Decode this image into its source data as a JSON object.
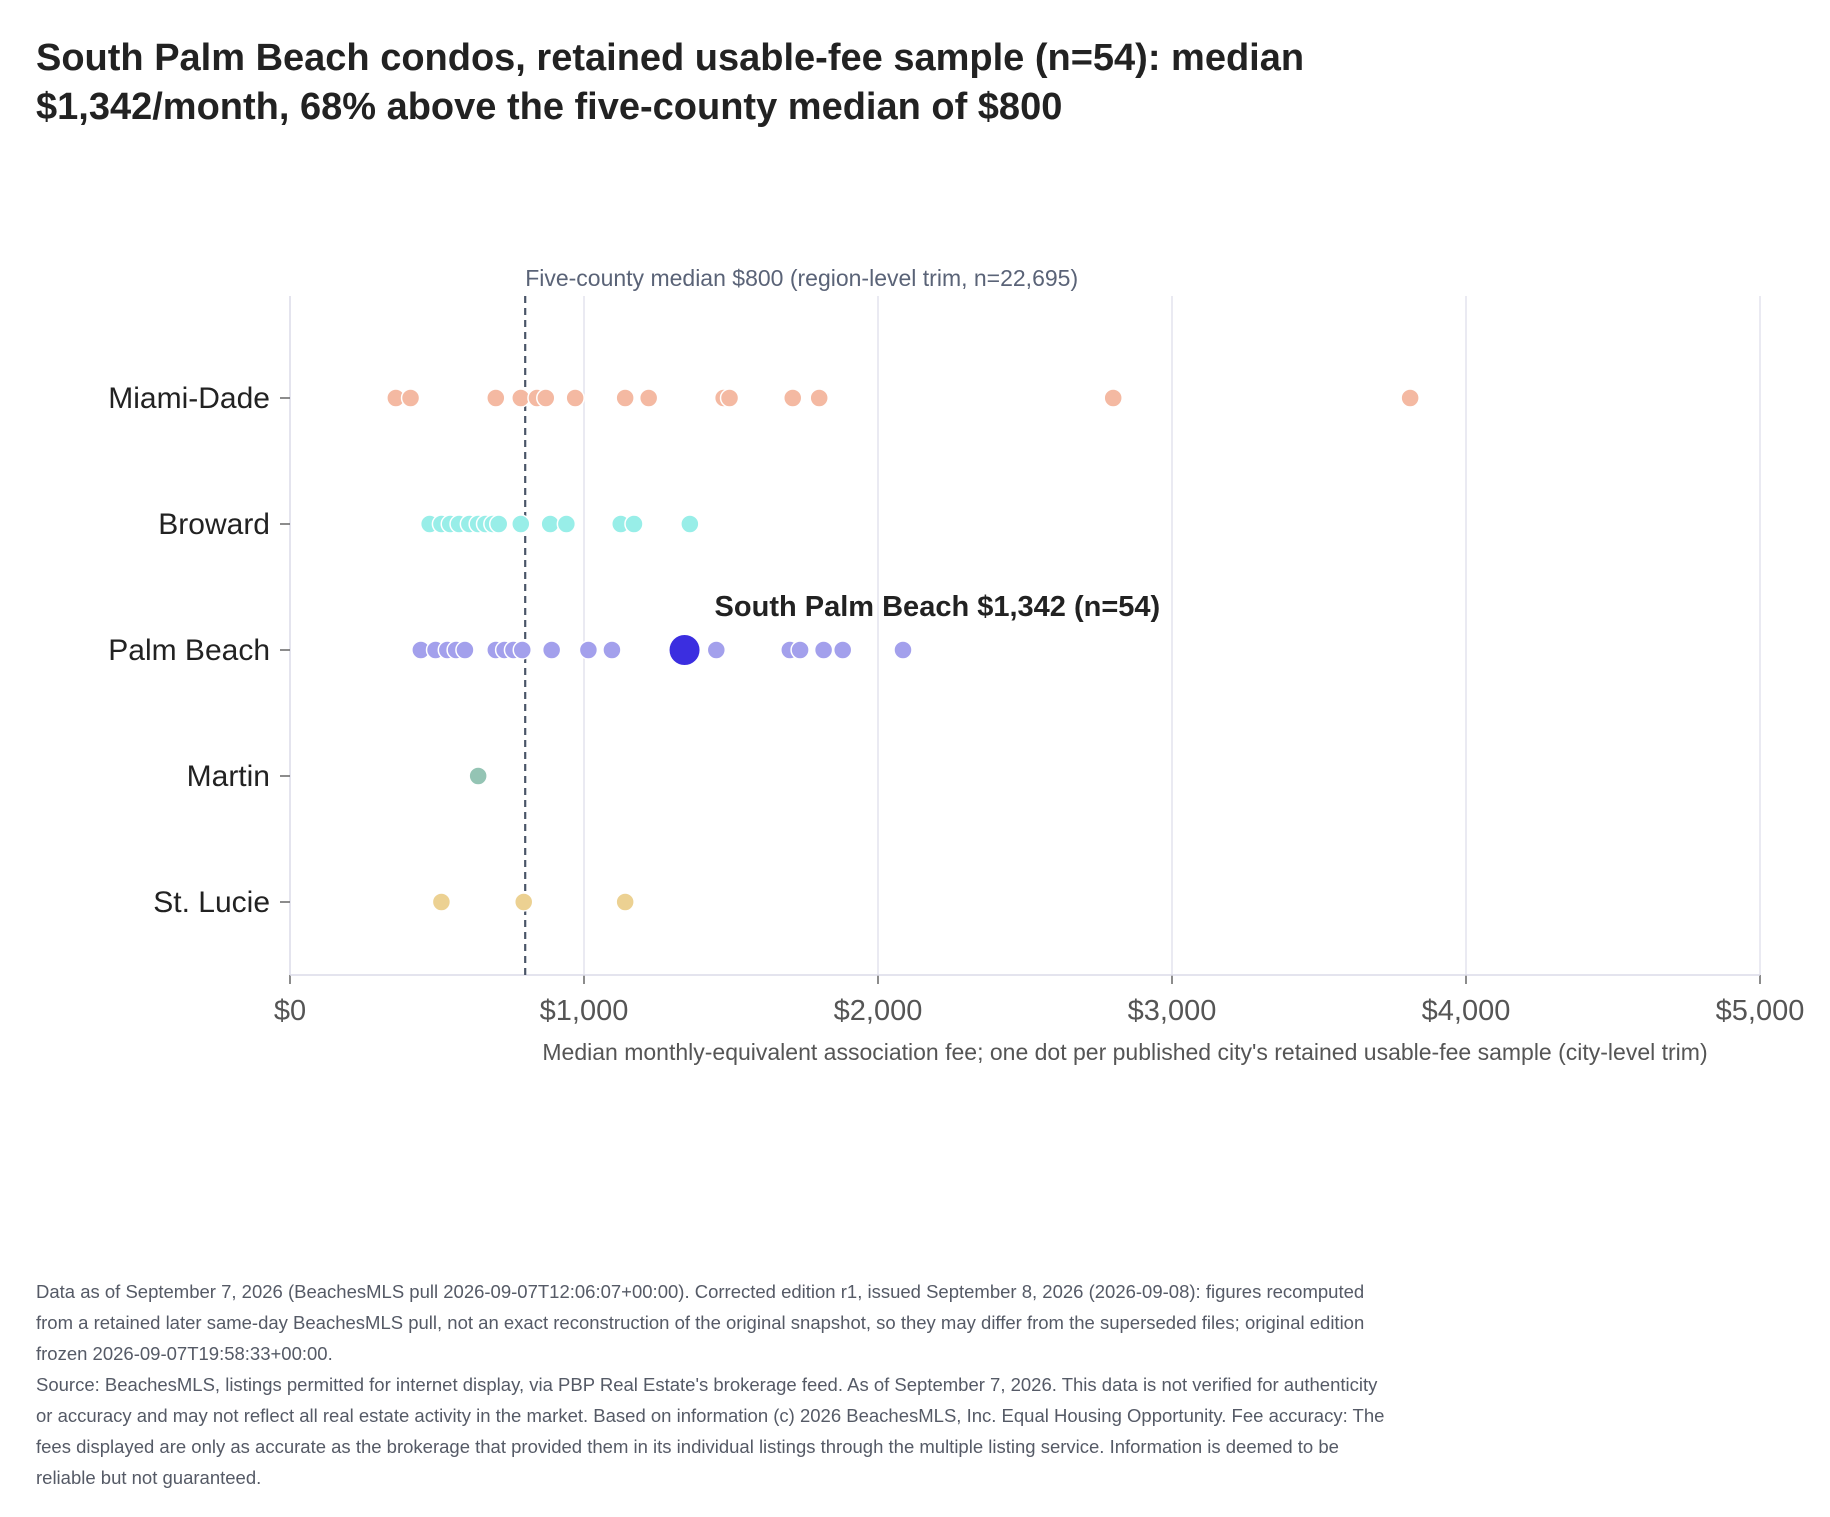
{
  "title_lines": [
    "South Palm Beach condos, retained usable-fee sample (n=54): median",
    "$1,342/month, 68% above the five-county median of $800"
  ],
  "chart_data": {
    "type": "scatter",
    "subtype": "strip plot",
    "xlabel": "Median monthly-equivalent association fee; one dot per published city's retained usable-fee sample (city-level trim)",
    "xlim": [
      0,
      5000
    ],
    "xticks": [
      0,
      1000,
      2000,
      3000,
      4000,
      5000
    ],
    "xtick_labels": [
      "$0",
      "$1,000",
      "$2,000",
      "$3,000",
      "$4,000",
      "$5,000"
    ],
    "grid": "vertical",
    "reference_line": {
      "value": 800,
      "label": "Five-county median $800 (region-level trim, n=22,695)",
      "style": "dashed",
      "color": "#4a5568"
    },
    "series": [
      {
        "name": "Miami-Dade",
        "color": "#f4b9a2",
        "values": [
          360,
          410,
          700,
          785,
          840,
          870,
          970,
          1140,
          1220,
          1475,
          1495,
          1710,
          1800,
          2800,
          3810
        ]
      },
      {
        "name": "Broward",
        "color": "#98eee8",
        "values": [
          475,
          515,
          545,
          575,
          610,
          640,
          665,
          690,
          710,
          785,
          885,
          940,
          1125,
          1170,
          1360
        ]
      },
      {
        "name": "Palm Beach",
        "color": "#a3a0ec",
        "values": [
          445,
          495,
          535,
          565,
          595,
          700,
          730,
          760,
          790,
          890,
          1015,
          1095,
          1450,
          1700,
          1735,
          1815,
          1880,
          2085
        ]
      },
      {
        "name": "Martin",
        "color": "#94c4b4",
        "values": [
          640
        ]
      },
      {
        "name": "St. Lucie",
        "color": "#ecd192",
        "values": [
          515,
          795,
          1140
        ]
      }
    ],
    "highlight": {
      "series": "Palm Beach",
      "label": "South Palm Beach $1,342 (n=54)",
      "value": 1342,
      "color": "#3b2ee0"
    }
  },
  "footnote": [
    "Data as of September 7, 2026 (BeachesMLS pull 2026-09-07T12:06:07+00:00). Corrected edition r1, issued September 8, 2026 (2026-09-08): figures recomputed from a retained later same-day BeachesMLS pull, not an exact reconstruction of the original snapshot, so they may differ from the superseded files; original edition frozen 2026-09-07T19:58:33+00:00.",
    "Source: BeachesMLS, listings permitted for internet display, via PBP Real Estate's brokerage feed. As of September 7, 2026. This data is not verified for authenticity or accuracy and may not reflect all real estate activity in the market. Based on information (c) 2026 BeachesMLS, Inc. Equal Housing Opportunity. Fee accuracy: The fees displayed are only as accurate as the brokerage that provided them in its individual listings through the multiple listing service. Information is deemed to be reliable but not guaranteed."
  ]
}
